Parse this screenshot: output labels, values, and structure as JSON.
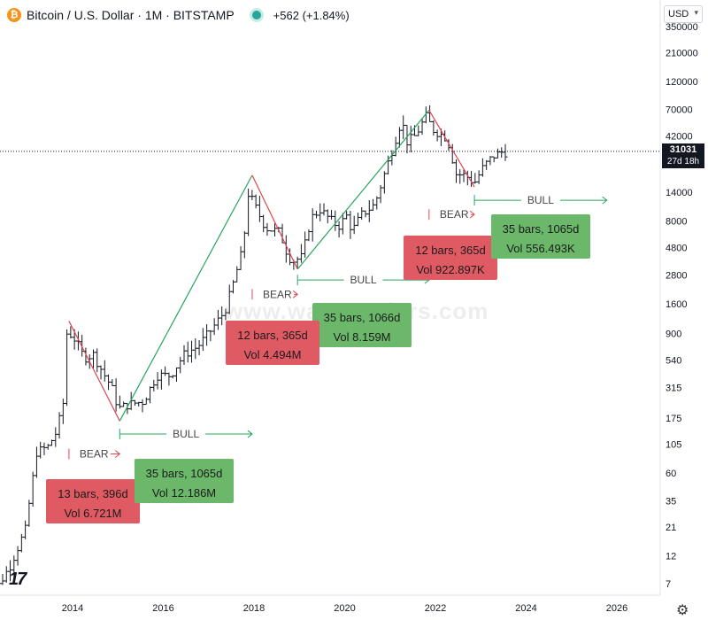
{
  "header": {
    "title": "Bitcoin / U.S. Dollar · 1M · BITSTAMP",
    "change": "+562 (+1.84%)",
    "currency": "USD"
  },
  "price_tag": {
    "price": "31031",
    "countdown": "27d 18h"
  },
  "watermark": "www.wavetraders.com",
  "colors": {
    "up_line": "#26a65b",
    "down_line": "#e0454f",
    "bar": "#131722",
    "red_box": "#e05a63",
    "green_box": "#6bb86b"
  },
  "chart_data": {
    "type": "line",
    "scale": "log",
    "y_ticks": [
      "350000",
      "210000",
      "120000",
      "70000",
      "42000",
      "24000",
      "14000",
      "8000",
      "4800",
      "2800",
      "1600",
      "900",
      "540",
      "315",
      "175",
      "105",
      "60",
      "35",
      "21",
      "12",
      "7"
    ],
    "x_ticks": [
      "2014",
      "2016",
      "2018",
      "2020",
      "2022",
      "2024",
      "2026"
    ],
    "price_series": {
      "x": [
        2012.0,
        2012.33,
        2012.67,
        2013.0,
        2013.25,
        2013.5,
        2013.67,
        2013.83,
        2013.92,
        2014.1,
        2014.3,
        2014.5,
        2014.7,
        2014.9,
        2015.05,
        2015.3,
        2015.6,
        2015.9,
        2016.2,
        2016.5,
        2016.8,
        2017.1,
        2017.4,
        2017.6,
        2017.8,
        2017.92,
        2018.1,
        2018.3,
        2018.6,
        2018.8,
        2018.92,
        2019.1,
        2019.3,
        2019.5,
        2019.7,
        2019.9,
        2020.1,
        2020.2,
        2020.4,
        2020.7,
        2020.9,
        2021.1,
        2021.3,
        2021.4,
        2021.6,
        2021.83,
        2022.0,
        2022.3,
        2022.5,
        2022.7,
        2022.9,
        2023.1,
        2023.3,
        2023.5
      ],
      "y": [
        5,
        6,
        10,
        20,
        90,
        100,
        130,
        220,
        950,
        800,
        560,
        600,
        430,
        320,
        210,
        230,
        240,
        400,
        400,
        600,
        700,
        970,
        1400,
        2500,
        4800,
        14000,
        10000,
        7000,
        6500,
        4000,
        3700,
        4000,
        8500,
        10000,
        8400,
        7200,
        9000,
        6500,
        9000,
        11000,
        19000,
        33000,
        58000,
        37000,
        42000,
        61000,
        47000,
        40000,
        20000,
        19500,
        16800,
        23000,
        28000,
        30500
      ]
    },
    "cycles": [
      {
        "phase": "BEAR",
        "from": {
          "x": 2013.92,
          "y": 1150
        },
        "to": {
          "x": 2015.04,
          "y": 165
        }
      },
      {
        "phase": "BULL",
        "from": {
          "x": 2015.04,
          "y": 165
        },
        "to": {
          "x": 2017.96,
          "y": 19500
        }
      },
      {
        "phase": "BEAR",
        "from": {
          "x": 2017.96,
          "y": 19500
        },
        "to": {
          "x": 2018.96,
          "y": 3150
        }
      },
      {
        "phase": "BULL",
        "from": {
          "x": 2018.96,
          "y": 3150
        },
        "to": {
          "x": 2021.86,
          "y": 69000
        }
      },
      {
        "phase": "BEAR",
        "from": {
          "x": 2021.86,
          "y": 69000
        },
        "to": {
          "x": 2022.86,
          "y": 15500
        }
      }
    ],
    "annotations": [
      {
        "label": "BEAR",
        "from": 2013.92,
        "to": 2015.04,
        "y": 87
      },
      {
        "label": "BULL",
        "from": 2015.04,
        "to": 2017.96,
        "y": 128
      },
      {
        "label": "BEAR",
        "from": 2017.96,
        "to": 2018.96,
        "y": 1930
      },
      {
        "label": "BULL",
        "from": 2018.96,
        "to": 2021.86,
        "y": 2550
      },
      {
        "label": "BEAR",
        "from": 2021.86,
        "to": 2022.86,
        "y": 9100
      },
      {
        "label": "BULL",
        "from": 2022.86,
        "to": 2025.78,
        "y": 12000
      }
    ],
    "current_price_line": 31031
  },
  "stats": [
    {
      "line1": "13 bars, 396d",
      "line2": "Vol 6.721M"
    },
    {
      "line1": "35 bars, 1065d",
      "line2": "Vol 12.186M"
    },
    {
      "line1": "12 bars, 365d",
      "line2": "Vol 4.494M"
    },
    {
      "line1": "35 bars, 1066d",
      "line2": "Vol 8.159M"
    },
    {
      "line1": "12 bars, 365d",
      "line2": "Vol 922.897K"
    },
    {
      "line1": "35 bars, 1065d",
      "line2": "Vol 556.493K"
    }
  ]
}
